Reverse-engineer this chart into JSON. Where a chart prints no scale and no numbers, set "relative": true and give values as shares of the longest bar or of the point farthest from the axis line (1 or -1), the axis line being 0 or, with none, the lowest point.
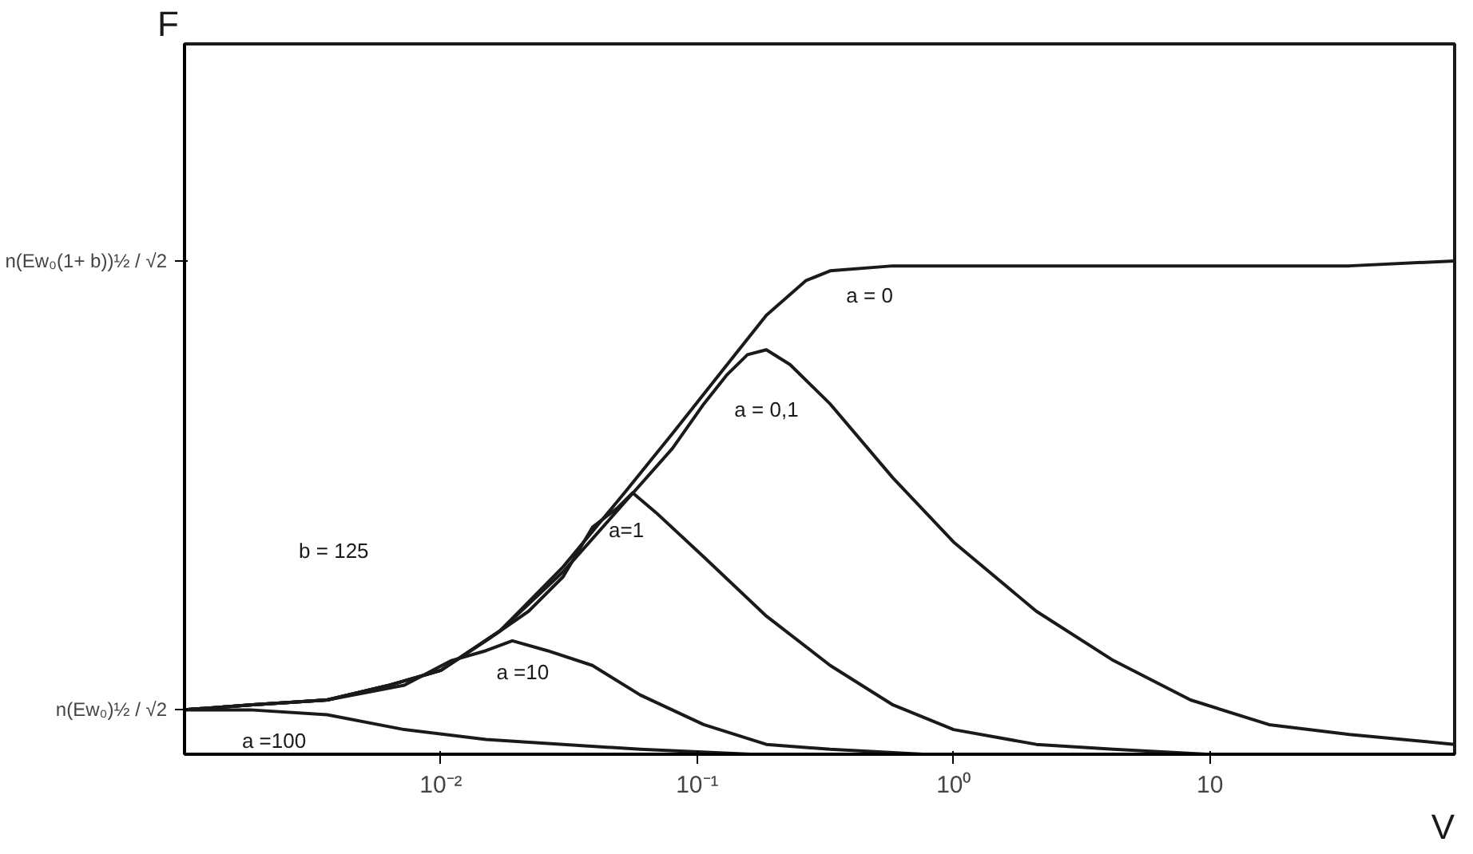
{
  "chart_data": {
    "type": "line",
    "relative": true,
    "log": "x",
    "xlabel": "V",
    "xlim": [
      0.001,
      90
    ],
    "xticks": [
      {
        "value": 0.01,
        "label": "10⁻²"
      },
      {
        "value": 0.1,
        "label": "10⁻¹"
      },
      {
        "value": 1,
        "label": "10⁰"
      },
      10
    ],
    "grid": false,
    "legend": false,
    "marker": "none",
    "line_style": "solid",
    "series": [
      {
        "name": "a = 0",
        "color": "#1a1a1a",
        "x": [
          0.001,
          0.0018,
          0.0036,
          0.0063,
          0.01,
          0.017,
          0.03,
          0.052,
          0.08,
          0.122,
          0.186,
          0.265,
          0.33,
          0.58,
          4.2,
          35,
          90
        ],
        "values": [
          0.09,
          0.1,
          0.11,
          0.14,
          0.17,
          0.25,
          0.38,
          0.53,
          0.65,
          0.77,
          0.89,
          0.96,
          0.98,
          0.99,
          0.99,
          0.99,
          1.0
        ]
      },
      {
        "name": "a = 0,1",
        "color": "#1a1a1a",
        "x": [
          0.001,
          0.0018,
          0.0036,
          0.0063,
          0.01,
          0.017,
          0.03,
          0.052,
          0.08,
          0.106,
          0.131,
          0.157,
          0.186,
          0.23,
          0.33,
          0.58,
          1.0,
          2.1,
          4.2,
          8.4,
          17,
          35,
          90
        ],
        "values": [
          0.09,
          0.1,
          0.11,
          0.14,
          0.17,
          0.25,
          0.37,
          0.51,
          0.62,
          0.71,
          0.77,
          0.81,
          0.82,
          0.79,
          0.71,
          0.56,
          0.43,
          0.29,
          0.19,
          0.11,
          0.06,
          0.04,
          0.02
        ]
      },
      {
        "name": "a=1",
        "color": "#1a1a1a",
        "x": [
          0.001,
          0.0018,
          0.0036,
          0.0063,
          0.01,
          0.015,
          0.022,
          0.03,
          0.039,
          0.049,
          0.056,
          0.069,
          0.106,
          0.186,
          0.33,
          0.58,
          1.0,
          2.1,
          4.2,
          9.7
        ],
        "values": [
          0.09,
          0.1,
          0.11,
          0.14,
          0.17,
          0.23,
          0.29,
          0.36,
          0.46,
          0.5,
          0.53,
          0.49,
          0.4,
          0.28,
          0.18,
          0.1,
          0.05,
          0.02,
          0.01,
          0
        ]
      },
      {
        "name": "a =10",
        "color": "#1a1a1a",
        "x": [
          0.001,
          0.0018,
          0.0036,
          0.0072,
          0.011,
          0.015,
          0.019,
          0.026,
          0.039,
          0.06,
          0.106,
          0.186,
          0.33,
          0.76
        ],
        "values": [
          0.09,
          0.1,
          0.11,
          0.14,
          0.19,
          0.21,
          0.23,
          0.21,
          0.18,
          0.12,
          0.06,
          0.02,
          0.01,
          0
        ]
      },
      {
        "name": "a =100",
        "color": "#1a1a1a",
        "x": [
          0.001,
          0.0018,
          0.0036,
          0.0072,
          0.015,
          0.03,
          0.06,
          0.162
        ],
        "values": [
          0.09,
          0.09,
          0.08,
          0.05,
          0.03,
          0.02,
          0.01,
          0
        ]
      }
    ],
    "annotations": [
      "n(Ew₀(1+ b))½ / √2",
      "n(Ew₀)½ / √2",
      "b = 125",
      "F"
    ]
  }
}
